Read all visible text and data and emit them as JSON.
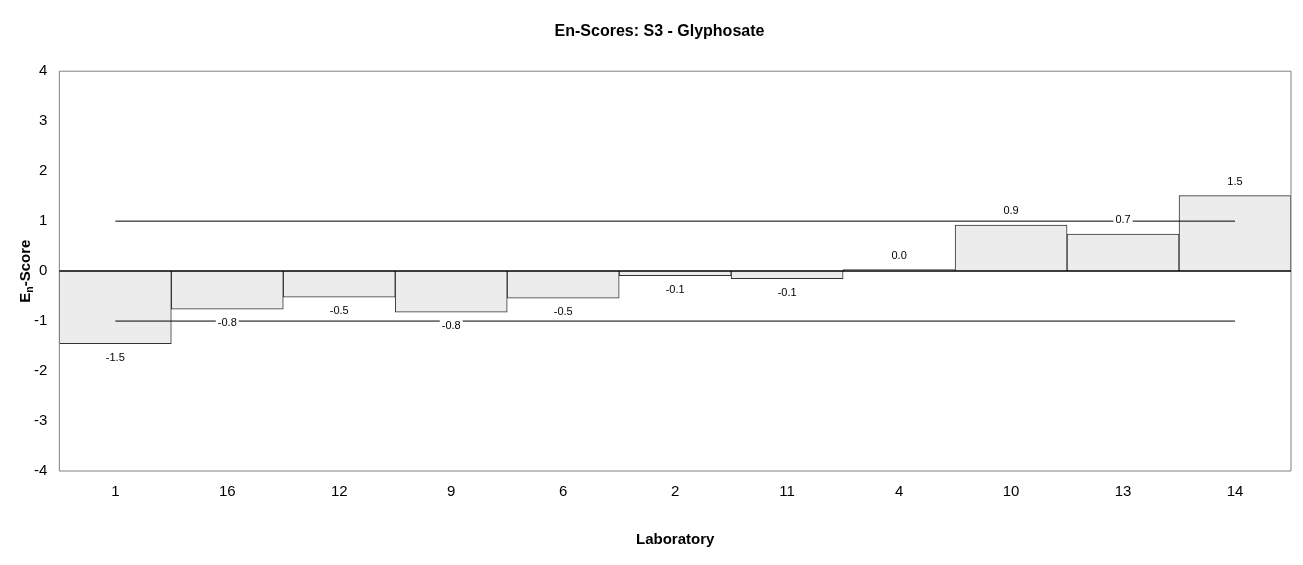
{
  "chart_data": {
    "type": "bar",
    "title": "En-Scores: S3 - Glyphosate",
    "xlabel": "Laboratory",
    "ylabel": "E$_{n}$-Score",
    "categories": [
      "1",
      "16",
      "12",
      "9",
      "6",
      "2",
      "11",
      "4",
      "10",
      "13",
      "14"
    ],
    "values": [
      -1.45,
      -0.76,
      -0.52,
      -0.82,
      -0.54,
      -0.09,
      -0.15,
      0.03,
      0.92,
      0.74,
      1.51
    ],
    "value_labels": [
      "-1.5",
      "-0.8",
      "-0.5",
      "-0.8",
      "-0.5",
      "-0.1",
      "-0.1",
      "0.0",
      "0.9",
      "0.7",
      "1.5"
    ],
    "color": "#ececec",
    "ylim": [
      -4,
      4
    ],
    "yticks": [
      -4,
      -3,
      -2,
      -1,
      0,
      1,
      2,
      3,
      4
    ],
    "ref_lines": [
      {
        "axis": "y",
        "value": 1,
        "color": "#000000"
      },
      {
        "axis": "y",
        "value": -1,
        "color": "#000000"
      }
    ],
    "grid": false,
    "legend": false
  }
}
